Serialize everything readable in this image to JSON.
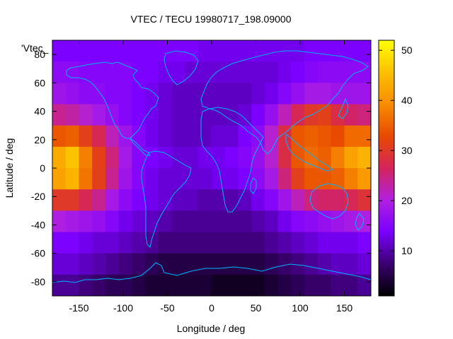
{
  "chart_data": {
    "type": "heatmap",
    "title": "VTEC / TECU 19980717_198.09000",
    "xlabel": "Longitude / deg",
    "ylabel": "Latitude / deg",
    "series_key": "'Vtec_",
    "xlim": [
      -180,
      180
    ],
    "ylim": [
      -90,
      90
    ],
    "x_ticks": [
      -150,
      -100,
      -50,
      0,
      50,
      100,
      150
    ],
    "y_ticks": [
      -80,
      -60,
      -40,
      -20,
      0,
      20,
      40,
      60,
      80
    ],
    "x_tick_labels": [
      "-150",
      "-100",
      "-50",
      "0",
      "50",
      "100",
      "150"
    ],
    "y_tick_labels": [
      "-80",
      "-60",
      "-40",
      "-20",
      "0",
      "20",
      "40",
      "60",
      "80"
    ],
    "colorbar": {
      "range": [
        1,
        52
      ],
      "ticks": [
        10,
        20,
        30,
        40,
        50
      ],
      "tick_labels": [
        "10",
        "20",
        "30",
        "40",
        "50"
      ],
      "palette": [
        "#000000",
        "#3a0070",
        "#7a00ff",
        "#b020e0",
        "#d4245c",
        "#e84a00",
        "#f88c00",
        "#fcc000",
        "#ffff00"
      ]
    },
    "grid": false,
    "legend_position": "top-left",
    "value_grid": {
      "lon_step": 15,
      "lat_step": 15,
      "lon_centers": [
        -172.5,
        -157.5,
        -142.5,
        -127.5,
        -112.5,
        -97.5,
        -82.5,
        -67.5,
        -52.5,
        -37.5,
        -22.5,
        -7.5,
        7.5,
        22.5,
        37.5,
        52.5,
        67.5,
        82.5,
        97.5,
        112.5,
        127.5,
        142.5,
        157.5,
        172.5
      ],
      "lat_centers": [
        82.5,
        67.5,
        52.5,
        37.5,
        22.5,
        7.5,
        -7.5,
        -22.5,
        -37.5,
        -52.5,
        -67.5,
        -82.5
      ],
      "values": [
        [
          14,
          14,
          14,
          14,
          14,
          14,
          14,
          14,
          14,
          14,
          14,
          13,
          13,
          13,
          13,
          13,
          13,
          13,
          13,
          14,
          14,
          14,
          14,
          14
        ],
        [
          16,
          16,
          15,
          15,
          15,
          15,
          14,
          14,
          13,
          13,
          12,
          12,
          12,
          12,
          12,
          12,
          12,
          13,
          14,
          15,
          16,
          16,
          16,
          16
        ],
        [
          18,
          17,
          16,
          16,
          15,
          15,
          14,
          13,
          12,
          11,
          11,
          11,
          11,
          11,
          11,
          12,
          13,
          15,
          17,
          19,
          19,
          18,
          18,
          18
        ],
        [
          24,
          23,
          21,
          19,
          17,
          15,
          14,
          13,
          12,
          11,
          11,
          11,
          11,
          11,
          12,
          14,
          17,
          22,
          27,
          30,
          31,
          28,
          26,
          25
        ],
        [
          34,
          35,
          31,
          27,
          22,
          18,
          15,
          13,
          12,
          11,
          11,
          11,
          12,
          12,
          14,
          16,
          21,
          28,
          34,
          35,
          34,
          33,
          36,
          36
        ],
        [
          43,
          46,
          38,
          31,
          25,
          19,
          15,
          14,
          13,
          12,
          12,
          13,
          13,
          14,
          15,
          17,
          21,
          28,
          34,
          36,
          35,
          38,
          42,
          44
        ],
        [
          42,
          44,
          37,
          31,
          24,
          18,
          15,
          13,
          12,
          12,
          12,
          12,
          13,
          13,
          14,
          16,
          19,
          25,
          31,
          34,
          34,
          35,
          38,
          41
        ],
        [
          30,
          30,
          27,
          24,
          19,
          16,
          14,
          13,
          12,
          11,
          11,
          10,
          10,
          10,
          11,
          13,
          15,
          18,
          22,
          25,
          26,
          26,
          27,
          29
        ],
        [
          20,
          19,
          18,
          17,
          15,
          13,
          12,
          11,
          10,
          9,
          9,
          9,
          9,
          9,
          9,
          10,
          11,
          13,
          15,
          16,
          17,
          18,
          19,
          20
        ],
        [
          14,
          14,
          13,
          12,
          12,
          11,
          10,
          9,
          8,
          8,
          8,
          8,
          8,
          8,
          8,
          8,
          9,
          10,
          11,
          12,
          13,
          13,
          13,
          14
        ],
        [
          12,
          12,
          11,
          10,
          9,
          8,
          7,
          6,
          5,
          5,
          5,
          5,
          5,
          5,
          5,
          5,
          6,
          7,
          8,
          9,
          10,
          11,
          11,
          12
        ],
        [
          9,
          9,
          8,
          7,
          6,
          6,
          5,
          4,
          4,
          4,
          4,
          4,
          3,
          3,
          3,
          3,
          4,
          5,
          6,
          7,
          7,
          8,
          8,
          9
        ]
      ]
    }
  }
}
